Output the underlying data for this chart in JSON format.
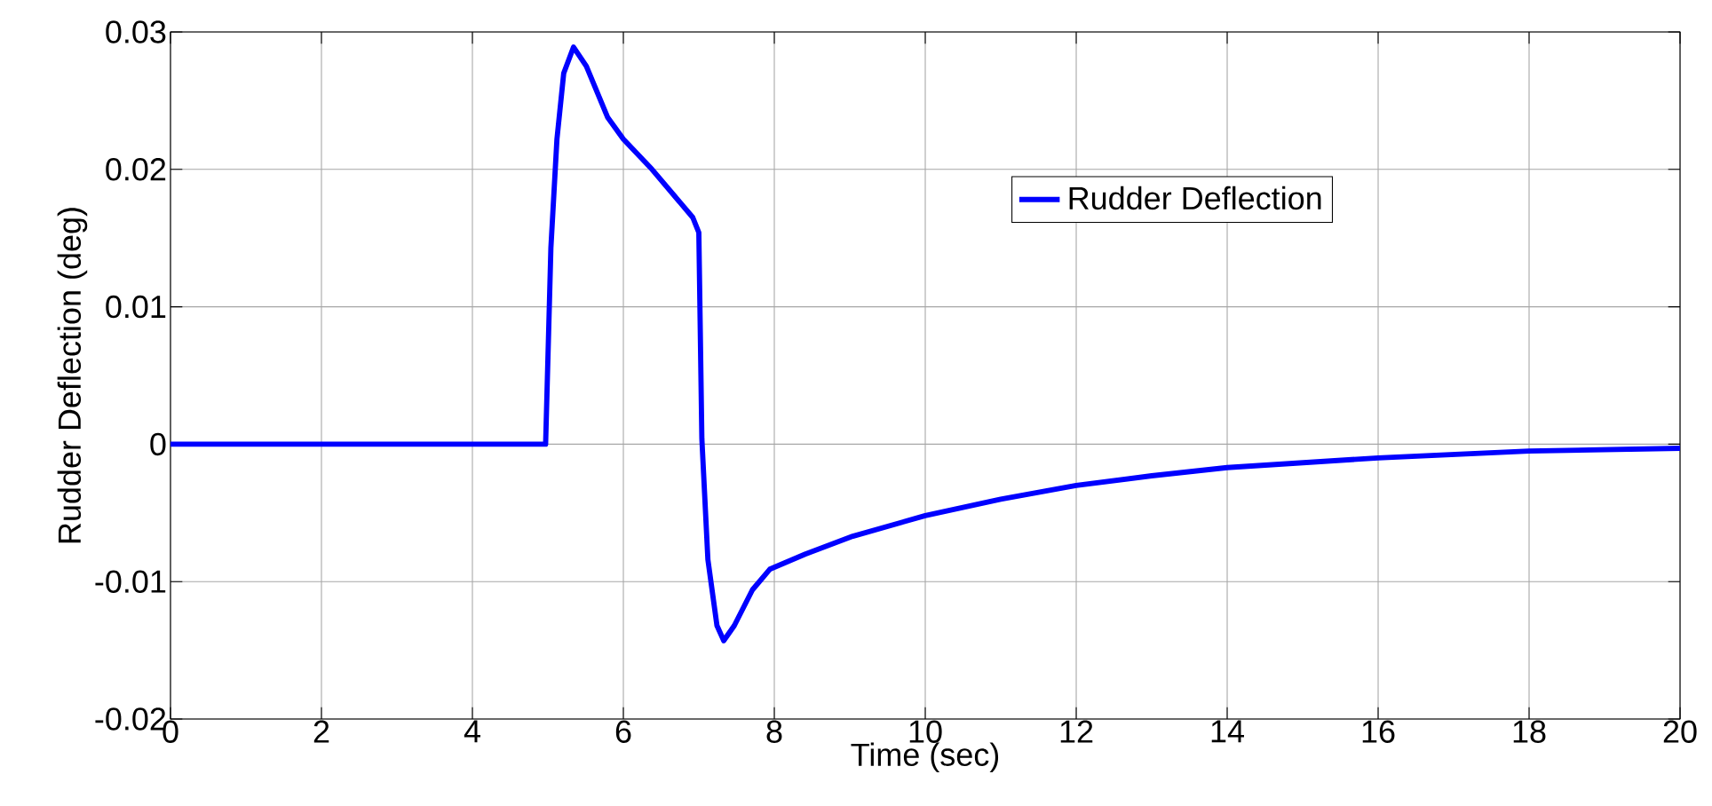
{
  "chart_data": {
    "type": "line",
    "xlabel": "Time (sec)",
    "ylabel": "Rudder Deflection (deg)",
    "xlim": [
      0,
      20
    ],
    "ylim": [
      -0.02,
      0.03
    ],
    "xticks": [
      0,
      2,
      4,
      6,
      8,
      10,
      12,
      14,
      16,
      18,
      20
    ],
    "yticks": [
      -0.02,
      -0.01,
      0,
      0.01,
      0.02,
      0.03
    ],
    "grid": true,
    "legend": "top right",
    "series": [
      {
        "name": "Rudder Deflection",
        "color": "#0000ff",
        "x": [
          0,
          2,
          4,
          4.97,
          5.04,
          5.12,
          5.21,
          5.34,
          5.51,
          5.79,
          6.0,
          6.38,
          6.92,
          7.0,
          7.04,
          7.12,
          7.24,
          7.33,
          7.47,
          7.71,
          7.94,
          8.41,
          9.04,
          10,
          11,
          12,
          13,
          14,
          16,
          18,
          20
        ],
        "values": [
          0,
          0,
          0,
          0,
          0.0143,
          0.0222,
          0.027,
          0.0289,
          0.0275,
          0.0238,
          0.0222,
          0.02,
          0.0165,
          0.0154,
          0.0004,
          -0.0084,
          -0.0132,
          -0.0143,
          -0.0132,
          -0.0106,
          -0.0091,
          -0.008,
          -0.0067,
          -0.0052,
          -0.004,
          -0.003,
          -0.0023,
          -0.0017,
          -0.001,
          -0.0005,
          -0.0003
        ]
      }
    ]
  }
}
